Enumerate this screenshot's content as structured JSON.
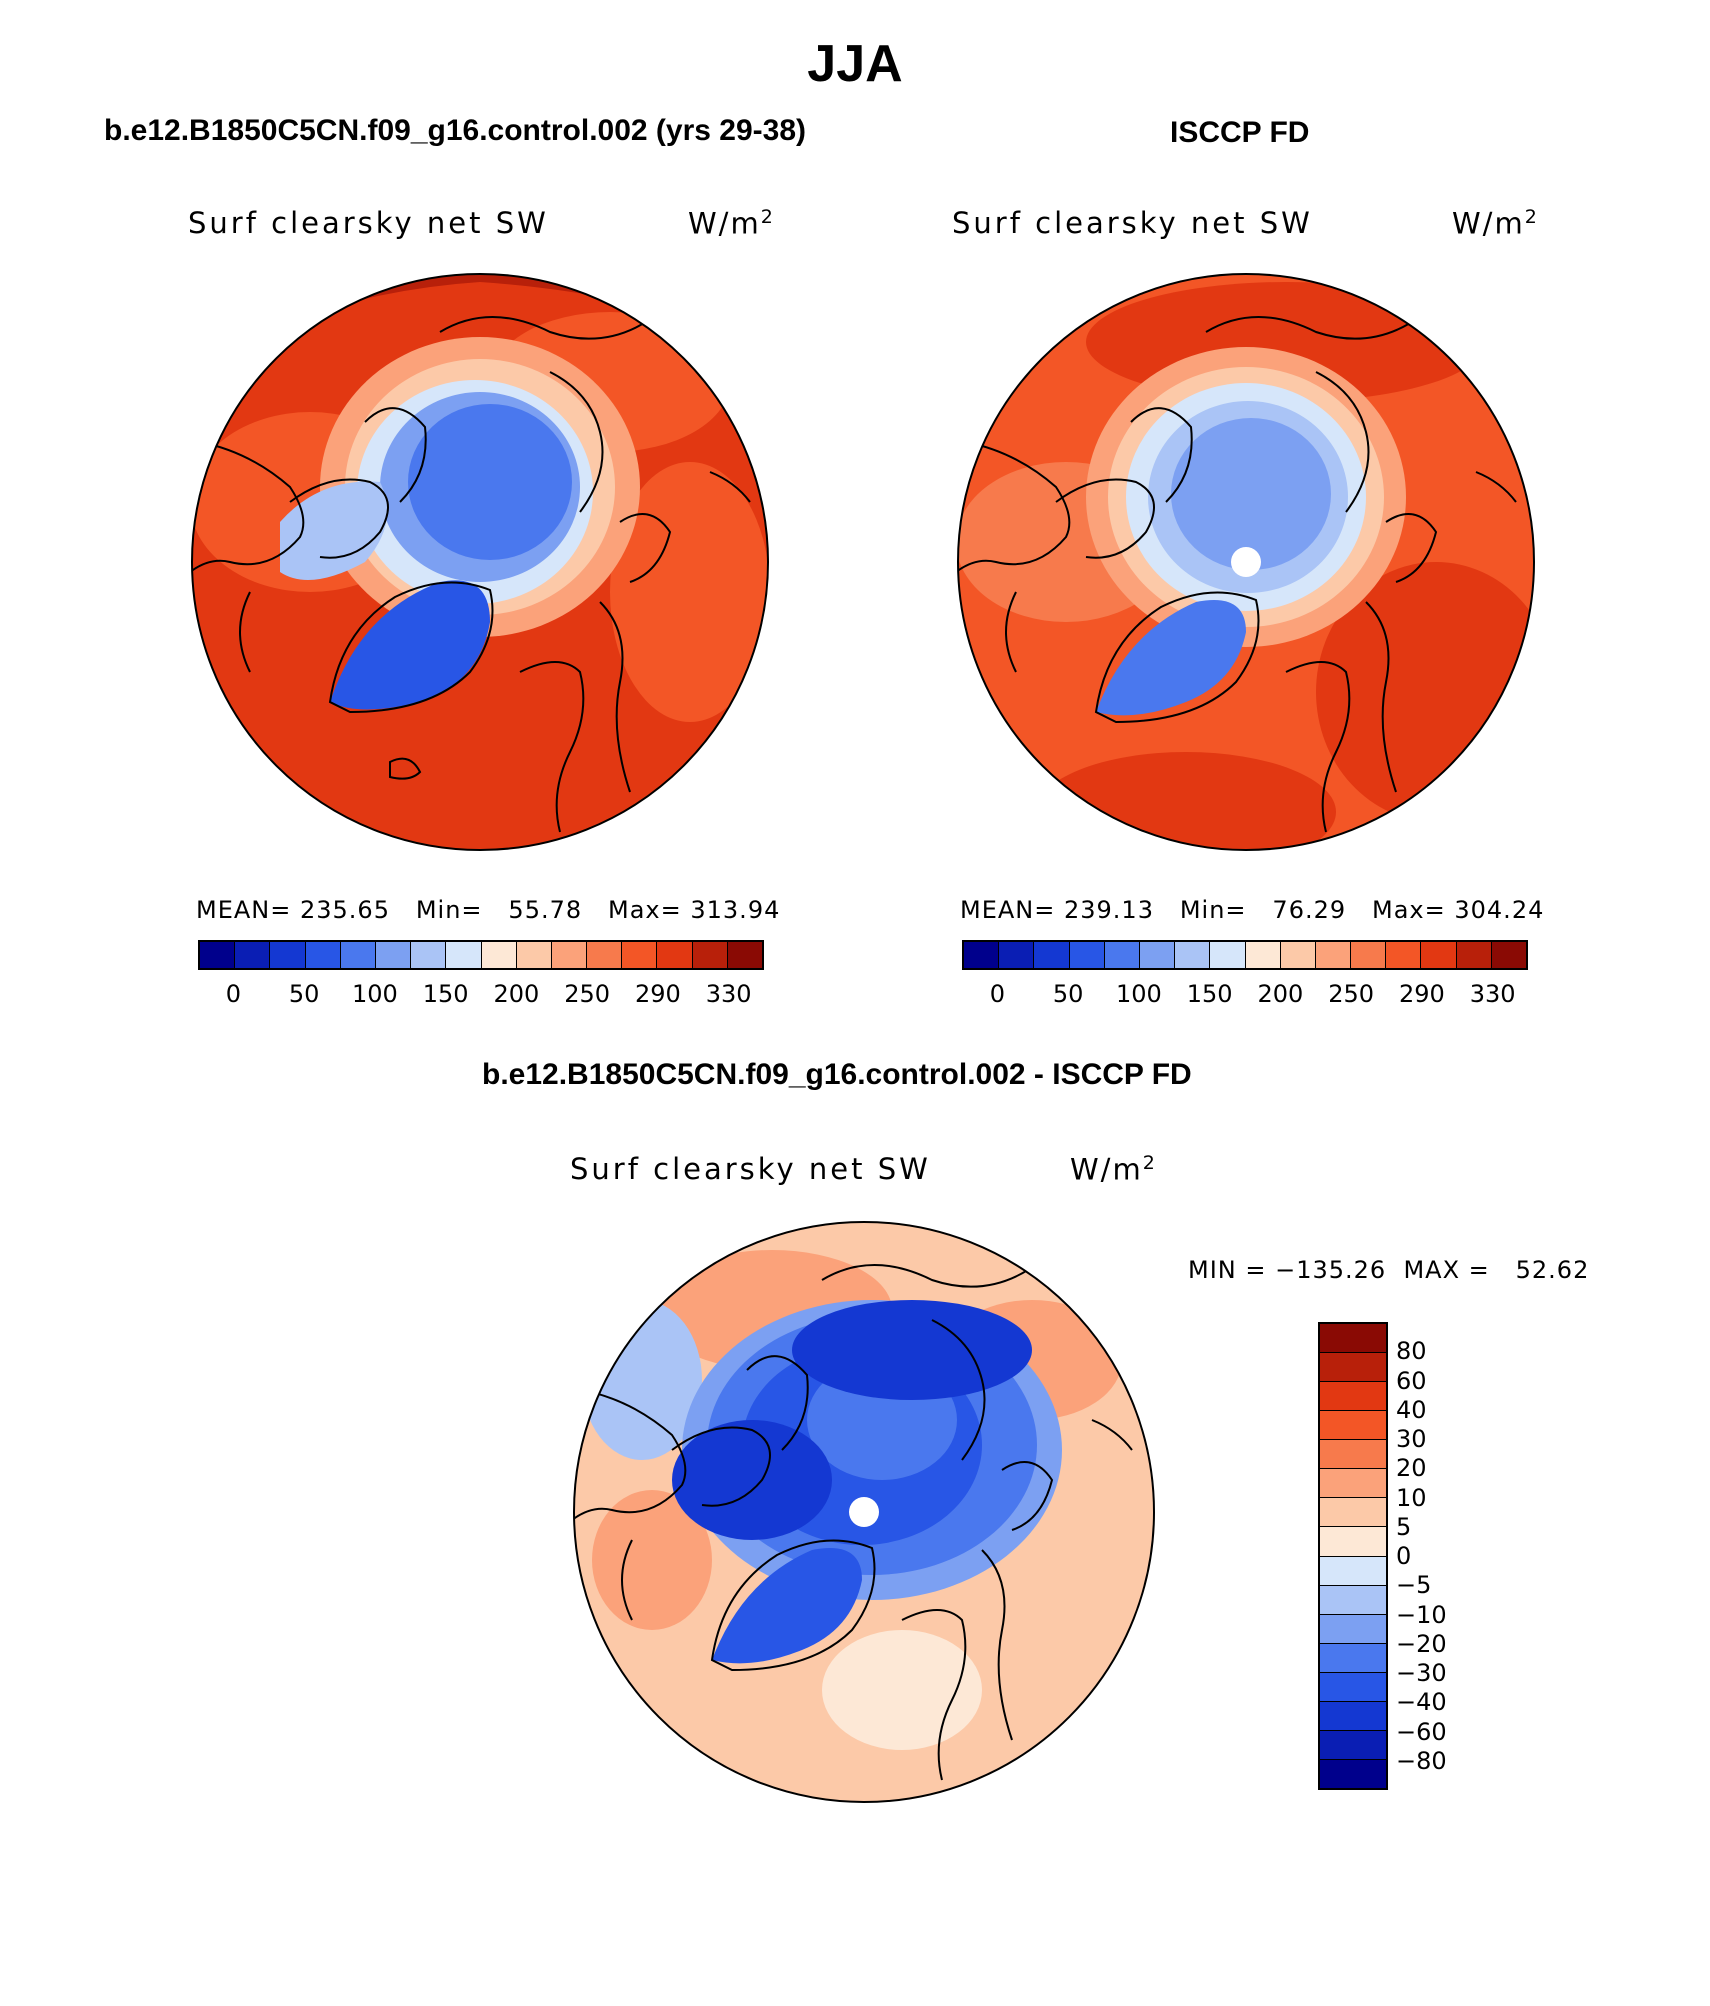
{
  "figure": {
    "season_title": "JJA",
    "panel_left_title": "b.e12.B1850C5CN.f09_g16.control.002 (yrs 29-38)",
    "panel_right_title": "ISCCP FD",
    "panel_diff_title": "b.e12.B1850C5CN.f09_g16.control.002 - ISCCP FD"
  },
  "panels": [
    {
      "variable": "Surf clearsky net SW",
      "units_base": "W/m",
      "units_exp": "2",
      "stats": "MEAN= 235.65   Min=   55.78   Max= 313.94"
    },
    {
      "variable": "Surf clearsky net SW",
      "units_base": "W/m",
      "units_exp": "2",
      "stats": "MEAN= 239.13   Min=   76.29   Max= 304.24"
    },
    {
      "variable": "Surf clearsky net SW",
      "units_base": "W/m",
      "units_exp": "2",
      "stats": "MIN = −135.26  MAX =   52.62"
    }
  ],
  "colorbar_abs": {
    "labels": [
      "0",
      "50",
      "100",
      "150",
      "200",
      "250",
      "290",
      "330"
    ],
    "colors": [
      "#00008c",
      "#0a1eb4",
      "#1438d2",
      "#2856e6",
      "#4a78ee",
      "#7ca0f2",
      "#aac4f6",
      "#d6e6fa",
      "#fde8d6",
      "#fcc9a8",
      "#fba27a",
      "#f77a4c",
      "#f35626",
      "#e23812",
      "#b8200a",
      "#8a0a04"
    ]
  },
  "colorbar_diff": {
    "labels": [
      "80",
      "60",
      "40",
      "30",
      "20",
      "10",
      "5",
      "0",
      "−5",
      "−10",
      "−20",
      "−30",
      "−40",
      "−60",
      "−80"
    ],
    "colors": [
      "#8a0a04",
      "#b8200a",
      "#e23812",
      "#f35626",
      "#f77a4c",
      "#fba27a",
      "#fcc9a8",
      "#fde8d6",
      "#d6e6fa",
      "#aac4f6",
      "#7ca0f2",
      "#4a78ee",
      "#2856e6",
      "#1438d2",
      "#0a1eb4",
      "#00008c"
    ]
  },
  "chart_data": [
    {
      "type": "heatmap",
      "title": "Surf clearsky net SW",
      "units": "W/m2",
      "projection": "north polar stereographic",
      "stats": {
        "mean": 235.65,
        "min": 55.78,
        "max": 313.94
      },
      "contour_levels": [
        0,
        25,
        50,
        75,
        100,
        125,
        150,
        175,
        200,
        225,
        250,
        270,
        290,
        310,
        330
      ]
    },
    {
      "type": "heatmap",
      "title": "Surf clearsky net SW",
      "units": "W/m2",
      "projection": "north polar stereographic",
      "stats": {
        "mean": 239.13,
        "min": 76.29,
        "max": 304.24
      },
      "contour_levels": [
        0,
        25,
        50,
        75,
        100,
        125,
        150,
        175,
        200,
        225,
        250,
        270,
        290,
        310,
        330
      ]
    },
    {
      "type": "heatmap",
      "title": "Surf clearsky net SW",
      "units": "W/m2",
      "projection": "north polar stereographic",
      "stats": {
        "min": -135.26,
        "max": 52.62
      },
      "contour_levels": [
        -80,
        -60,
        -40,
        -30,
        -20,
        -10,
        -5,
        0,
        5,
        10,
        20,
        30,
        40,
        60,
        80
      ]
    }
  ]
}
